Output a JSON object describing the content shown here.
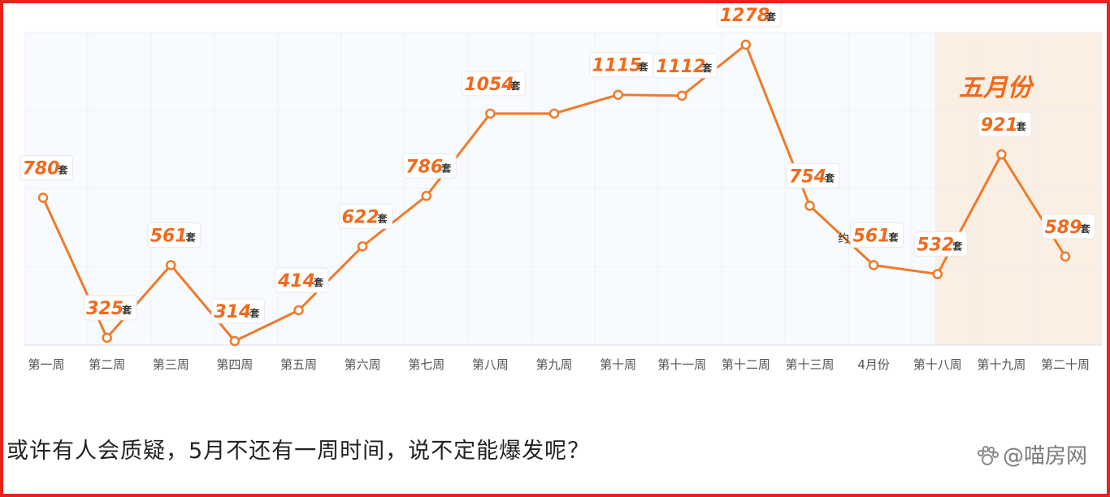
{
  "caption": "或许有人会质疑，5月不还有一周时间，说不定能爆发呢？",
  "watermark": {
    "text": "@喵房网",
    "icon": "paw-icon"
  },
  "colors": {
    "line": "#f07a2a",
    "label": "#f06a1c",
    "highlight": "#fbeee2",
    "frame": "#e8231b"
  },
  "chart_data": {
    "type": "line",
    "categories": [
      "第一周",
      "第二周",
      "第三周",
      "第四周",
      "第五周",
      "第六周",
      "第七周",
      "第八周",
      "第九周",
      "第十周",
      "第十一周",
      "第十二周",
      "第十三周",
      "4月份",
      "第十八周",
      "第十九周",
      "第二十周"
    ],
    "values": [
      780,
      325,
      561,
      314,
      414,
      622,
      786,
      1054,
      1054,
      1115,
      1112,
      1278,
      754,
      561,
      532,
      921,
      589
    ],
    "data_labels": [
      "780",
      "325",
      "561",
      "314",
      "414",
      "622",
      "786",
      "1054",
      "",
      "1115",
      "1112",
      "1278",
      "754",
      "561",
      "532",
      "921",
      "589"
    ],
    "data_label_suffix": "套",
    "annotation": {
      "text": "五月份",
      "from_category": "第十八周",
      "to_category": "第二十周"
    },
    "extra_label": "约",
    "ylim": [
      300,
      1300
    ],
    "grid": true
  }
}
